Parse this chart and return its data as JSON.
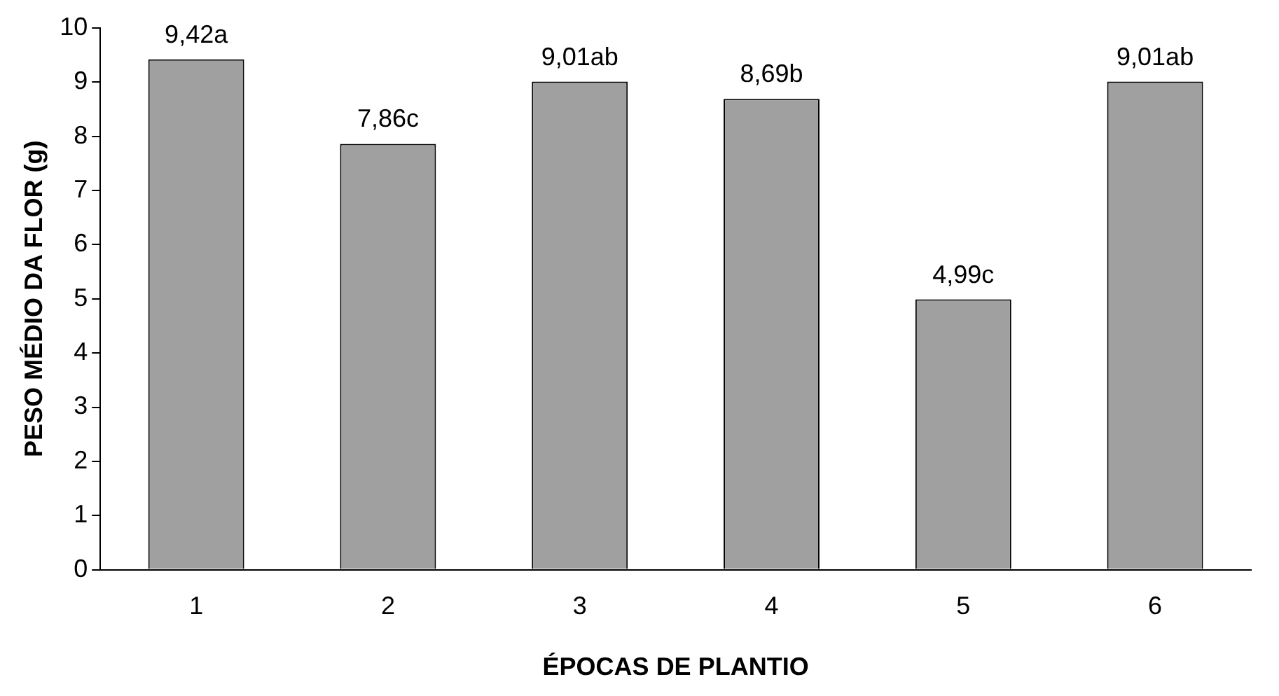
{
  "chart_data": {
    "type": "bar",
    "xlabel": "ÉPOCAS DE PLANTIO",
    "ylabel": "PESO MÉDIO DA FLOR (g)",
    "categories": [
      "1",
      "2",
      "3",
      "4",
      "5",
      "6"
    ],
    "values": [
      9.42,
      7.86,
      9.01,
      8.69,
      4.99,
      9.01
    ],
    "value_labels": [
      "9,42a",
      "7,86c",
      "9,01ab",
      "8,69b",
      "4,99c",
      "9,01ab"
    ],
    "color": "#a0a0a0",
    "ylim": [
      0,
      10
    ],
    "yticks": [
      0,
      1,
      2,
      3,
      4,
      5,
      6,
      7,
      8,
      9,
      10
    ],
    "grid": false,
    "legend": false
  }
}
